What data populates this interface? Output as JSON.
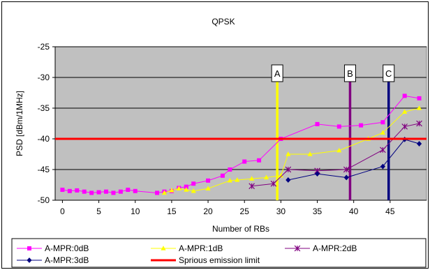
{
  "chart_data": {
    "type": "line",
    "title": "QPSK",
    "xlabel": "Number of RBs",
    "ylabel": "PSD [dBm/1MHz]",
    "xlim": [
      -1,
      50
    ],
    "ylim": [
      -50,
      -25
    ],
    "xticks": [
      0,
      5,
      10,
      15,
      20,
      25,
      30,
      35,
      40,
      45
    ],
    "yticks": [
      -25,
      -30,
      -35,
      -40,
      -45,
      -50
    ],
    "grid": true,
    "legend_position": "bottom",
    "series": [
      {
        "name": "A-MPR:0dB",
        "color": "#ff00ff",
        "marker": "square",
        "points": [
          [
            0,
            -48.3
          ],
          [
            1,
            -48.5
          ],
          [
            2,
            -48.4
          ],
          [
            3,
            -48.6
          ],
          [
            4,
            -48.8
          ],
          [
            5,
            -48.7
          ],
          [
            6,
            -48.6
          ],
          [
            7,
            -48.8
          ],
          [
            8,
            -48.6
          ],
          [
            9,
            -48.3
          ],
          [
            10,
            -48.5
          ],
          [
            13,
            -48.8
          ],
          [
            14,
            -48.6
          ],
          [
            15,
            -48.5
          ],
          [
            16,
            -48.0
          ],
          [
            17,
            -47.8
          ],
          [
            18,
            -47.3
          ],
          [
            20,
            -46.8
          ],
          [
            22,
            -46.0
          ],
          [
            23,
            -45.0
          ],
          [
            25,
            -43.7
          ],
          [
            27,
            -43.5
          ],
          [
            30,
            -40.0
          ],
          [
            35,
            -37.6
          ],
          [
            38,
            -38.0
          ],
          [
            41,
            -37.8
          ],
          [
            44,
            -37.3
          ],
          [
            47,
            -33.0
          ],
          [
            49,
            -33.4
          ]
        ]
      },
      {
        "name": "A-MPR:1dB",
        "color": "#ffff00",
        "marker": "triangle",
        "points": [
          [
            14,
            -48.8
          ],
          [
            15,
            -48.4
          ],
          [
            16,
            -48.1
          ],
          [
            17,
            -48.3
          ],
          [
            18,
            -48.5
          ],
          [
            20,
            -48.1
          ],
          [
            23,
            -46.8
          ],
          [
            24,
            -46.7
          ],
          [
            26,
            -46.5
          ],
          [
            28,
            -46.3
          ],
          [
            30,
            -46.0
          ],
          [
            31,
            -42.5
          ],
          [
            34,
            -42.5
          ],
          [
            38,
            -41.9
          ],
          [
            42,
            -40.0
          ],
          [
            44,
            -39.0
          ],
          [
            47,
            -35.6
          ],
          [
            49,
            -35.0
          ]
        ]
      },
      {
        "name": "A-MPR:2dB",
        "color": "#800080",
        "marker": "star",
        "points": [
          [
            26,
            -47.7
          ],
          [
            29,
            -47.3
          ],
          [
            31,
            -45.0
          ],
          [
            35,
            -45.2
          ],
          [
            39,
            -45.0
          ],
          [
            44,
            -41.8
          ],
          [
            47,
            -38.0
          ],
          [
            49,
            -37.5
          ]
        ]
      },
      {
        "name": "A-MPR:3dB",
        "color": "#000080",
        "marker": "diamond",
        "points": [
          [
            31,
            -46.7
          ],
          [
            35,
            -45.7
          ],
          [
            39,
            -46.3
          ],
          [
            44,
            -44.5
          ],
          [
            47,
            -40.1
          ],
          [
            49,
            -40.8
          ]
        ]
      },
      {
        "name": "Sprious emission limit",
        "color": "#ff0000",
        "marker": "none",
        "points": [
          [
            -1,
            -40
          ],
          [
            50,
            -40
          ]
        ]
      }
    ],
    "vlines": [
      {
        "label": "A",
        "x": 29.5,
        "color": "#ffff00"
      },
      {
        "label": "B",
        "x": 39.5,
        "color": "#800080"
      },
      {
        "label": "C",
        "x": 44.8,
        "color": "#000080"
      }
    ]
  }
}
